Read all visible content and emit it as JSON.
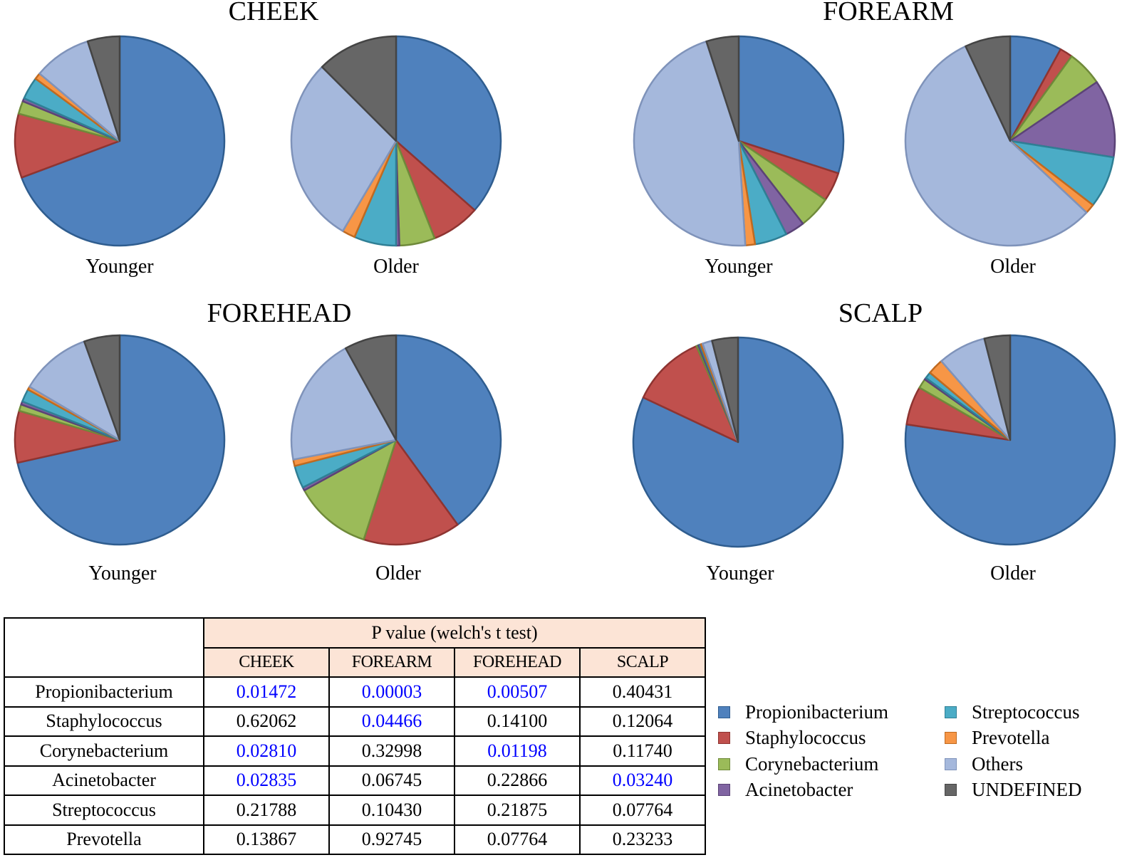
{
  "chart_data": [
    {
      "type": "pie",
      "title": "CHEEK",
      "pies": [
        {
          "label": "Younger",
          "values": {
            "Propionibacterium": 70,
            "Staphylococcus": 10,
            "Corynebacterium": 2,
            "Acinetobacter": 0.5,
            "Streptococcus": 3.5,
            "Prevotella": 1,
            "Others": 9,
            "UNDEFINED": 5
          }
        },
        {
          "label": "Older",
          "values": {
            "Propionibacterium": 36.5,
            "Staphylococcus": 7.5,
            "Corynebacterium": 5.5,
            "Acinetobacter": 0.5,
            "Streptococcus": 6.5,
            "Prevotella": 2,
            "Others": 29,
            "UNDEFINED": 12.5
          }
        }
      ]
    },
    {
      "type": "pie",
      "title": "FOREARM",
      "pies": [
        {
          "label": "Younger",
          "values": {
            "Propionibacterium": 30,
            "Staphylococcus": 4.5,
            "Corynebacterium": 5,
            "Acinetobacter": 3,
            "Streptococcus": 5,
            "Prevotella": 1.5,
            "Others": 46,
            "UNDEFINED": 5
          }
        },
        {
          "label": "Older",
          "values": {
            "Propionibacterium": 8,
            "Staphylococcus": 2,
            "Corynebacterium": 5.5,
            "Acinetobacter": 12,
            "Streptococcus": 8,
            "Prevotella": 1.5,
            "Others": 56,
            "UNDEFINED": 7
          }
        }
      ]
    },
    {
      "type": "pie",
      "title": "FOREHEAD",
      "pies": [
        {
          "label": "Younger",
          "values": {
            "Propionibacterium": 71.5,
            "Staphylococcus": 8,
            "Corynebacterium": 1,
            "Acinetobacter": 0.5,
            "Streptococcus": 2,
            "Prevotella": 0.5,
            "Others": 11,
            "UNDEFINED": 5.5
          }
        },
        {
          "label": "Older",
          "values": {
            "Propionibacterium": 40,
            "Staphylococcus": 15,
            "Corynebacterium": 12,
            "Acinetobacter": 0.5,
            "Streptococcus": 3.5,
            "Prevotella": 1,
            "Others": 20,
            "UNDEFINED": 8
          }
        }
      ]
    },
    {
      "type": "pie",
      "title": "SCALP",
      "pies": [
        {
          "label": "Younger",
          "values": {
            "Propionibacterium": 82,
            "Staphylococcus": 11.5,
            "Corynebacterium": 0.3,
            "Acinetobacter": 0.2,
            "Streptococcus": 0.2,
            "Prevotella": 0.3,
            "Others": 1.5,
            "UNDEFINED": 4
          }
        },
        {
          "label": "Older",
          "values": {
            "Propionibacterium": 78,
            "Staphylococcus": 6,
            "Corynebacterium": 1.5,
            "Acinetobacter": 0.3,
            "Streptococcus": 1,
            "Prevotella": 2.5,
            "Others": 7.5,
            "UNDEFINED": 4
          }
        }
      ]
    }
  ],
  "legend": {
    "items": [
      {
        "name": "Propionibacterium",
        "color": "#4f81bd",
        "stroke": "#2f5d8f"
      },
      {
        "name": "Staphylococcus",
        "color": "#c0504d",
        "stroke": "#8e3431"
      },
      {
        "name": "Corynebacterium",
        "color": "#9bbb59",
        "stroke": "#6f8a3a"
      },
      {
        "name": "Acinetobacter",
        "color": "#8064a2",
        "stroke": "#5b4377"
      },
      {
        "name": "Streptococcus",
        "color": "#4bacc6",
        "stroke": "#2f7f95"
      },
      {
        "name": "Prevotella",
        "color": "#f79646",
        "stroke": "#c06a20"
      },
      {
        "name": "Others",
        "color": "#a5b8dc",
        "stroke": "#7f93ba"
      },
      {
        "name": "UNDEFINED",
        "color": "#666666",
        "stroke": "#444444"
      }
    ]
  },
  "table": {
    "header": "P value (welch's t test)",
    "columns": [
      "CHEEK",
      "FOREARM",
      "FOREHEAD",
      "SCALP"
    ],
    "rows": [
      {
        "label": "Propionibacterium",
        "values": [
          "0.01472",
          "0.00003",
          "0.00507",
          "0.40431"
        ]
      },
      {
        "label": "Staphylococcus",
        "values": [
          "0.62062",
          "0.04466",
          "0.14100",
          "0.12064"
        ]
      },
      {
        "label": "Corynebacterium",
        "values": [
          "0.02810",
          "0.32998",
          "0.01198",
          "0.11740"
        ]
      },
      {
        "label": "Acinetobacter",
        "values": [
          "0.02835",
          "0.06745",
          "0.22866",
          "0.03240"
        ]
      },
      {
        "label": "Streptococcus",
        "values": [
          "0.21788",
          "0.10430",
          "0.21875",
          "0.07764"
        ]
      },
      {
        "label": "Prevotella",
        "values": [
          "0.13867",
          "0.92745",
          "0.07764",
          "0.23233"
        ]
      }
    ],
    "significance_threshold": 0.05,
    "significant_color": "#0000ff"
  }
}
